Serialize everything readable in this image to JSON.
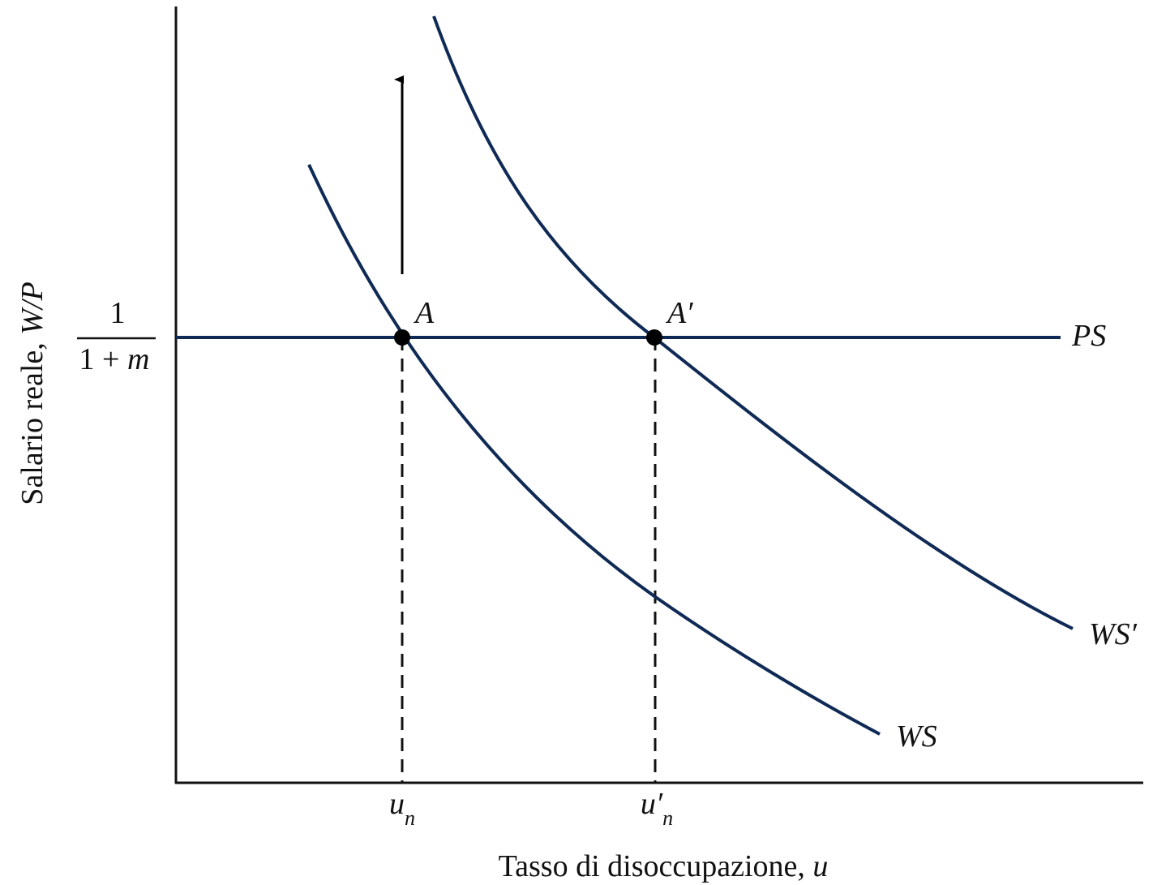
{
  "y_axis": {
    "label": "Salario reale, ",
    "variable": "W/P"
  },
  "y_tick": {
    "numerator": "1",
    "denominator_prefix": "1 + ",
    "denominator_variable": "m"
  },
  "x_axis": {
    "label": "Tasso di disoccupazione, ",
    "variable": "u"
  },
  "x_ticks": [
    {
      "variable": "u",
      "subscript": "n"
    },
    {
      "variable": "u′",
      "subscript": "n"
    }
  ],
  "points": [
    {
      "label": "A"
    },
    {
      "label": "A′"
    }
  ],
  "curves": [
    {
      "label": "PS"
    },
    {
      "label": "WS"
    },
    {
      "label": "WS′"
    }
  ]
}
